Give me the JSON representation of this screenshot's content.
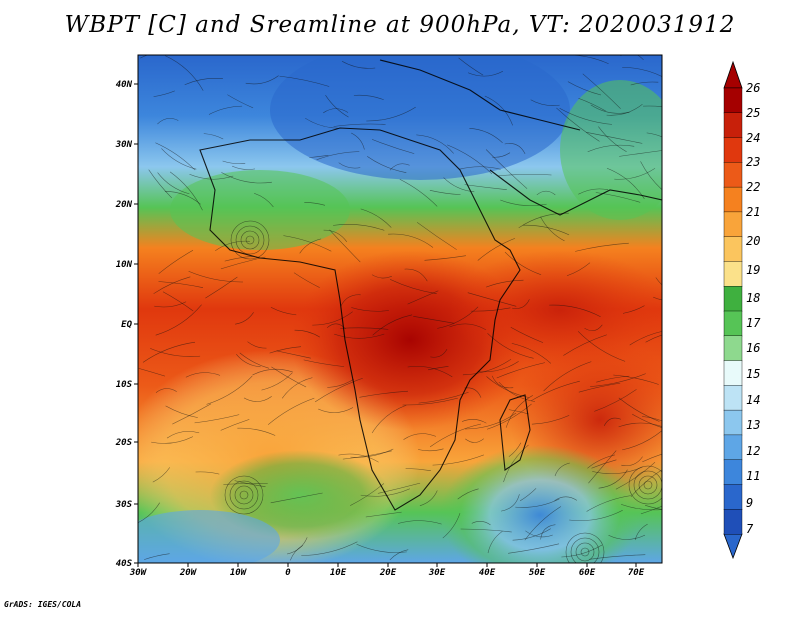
{
  "title": "WBPT [C] and Sreamline at 900hPa, VT: 2020031912",
  "footer": "GrADS: IGES/COLA",
  "map": {
    "lon_labels": [
      "30W",
      "20W",
      "10W",
      "0",
      "10E",
      "20E",
      "30E",
      "40E",
      "50E",
      "60E",
      "70E"
    ],
    "lat_labels": [
      "40N",
      "30N",
      "20N",
      "10N",
      "EQ",
      "10S",
      "20S",
      "30S",
      "40S"
    ]
  },
  "colorbar": {
    "levels": [
      "26",
      "25",
      "24",
      "23",
      "22",
      "21",
      "20",
      "19",
      "18",
      "17",
      "16",
      "15",
      "14",
      "13",
      "12",
      "11",
      "9",
      "7"
    ],
    "colors": [
      "#a50000",
      "#c8200a",
      "#e0380e",
      "#ec5a18",
      "#f5811f",
      "#f9a43a",
      "#fbc55e",
      "#fbe18a",
      "#3fb03f",
      "#56c456",
      "#8ed98e",
      "#e8fafa",
      "#bde3f5",
      "#8cc7ee",
      "#5ea6e6",
      "#3d86dc",
      "#2a67cc",
      "#1f4fb8"
    ],
    "top_arrow_color": "#a50000",
    "bottom_arrow_color": "#2a67cc"
  }
}
